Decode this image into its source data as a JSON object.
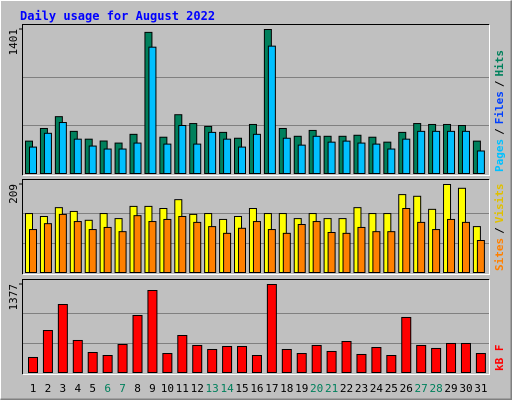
{
  "chart_data": {
    "type": "bar",
    "title": "Daily usage for August 2022",
    "categories": [
      "1",
      "2",
      "3",
      "4",
      "5",
      "6",
      "7",
      "8",
      "9",
      "10",
      "11",
      "12",
      "13",
      "14",
      "15",
      "16",
      "17",
      "18",
      "19",
      "20",
      "21",
      "22",
      "23",
      "24",
      "25",
      "26",
      "27",
      "28",
      "29",
      "30",
      "31"
    ],
    "category_colors": [
      "#000000",
      "#000000",
      "#000000",
      "#000000",
      "#000000",
      "#00805c",
      "#00805c",
      "#000000",
      "#000000",
      "#000000",
      "#000000",
      "#000000",
      "#00805c",
      "#00805c",
      "#000000",
      "#000000",
      "#000000",
      "#000000",
      "#000000",
      "#00805c",
      "#00805c",
      "#000000",
      "#000000",
      "#000000",
      "#000000",
      "#000000",
      "#00805c",
      "#00805c",
      "#000000",
      "#000000",
      "#000000"
    ],
    "legend_separator": "/",
    "panels": [
      {
        "ylim": [
          0,
          1401
        ],
        "yticks": [
          1401
        ],
        "legend": [
          {
            "name": "Pages",
            "color": "#00c0ff"
          },
          {
            "name": "Files",
            "color": "#0040ff"
          },
          {
            "name": "Hits",
            "color": "#00805c"
          }
        ],
        "series": [
          {
            "name": "Hits",
            "color": "#00805c",
            "values": [
              315,
              438,
              553,
              410,
              334,
              316,
              296,
              381,
              1373,
              353,
              572,
              486,
              458,
              400,
              343,
              477,
              1401,
              438,
              362,
              419,
              362,
              362,
              372,
              353,
              305,
              400,
              486,
              477,
              477,
              467,
              315
            ]
          },
          {
            "name": "Pages",
            "color": "#00c0ff",
            "values": [
              257,
              391,
              496,
              334,
              267,
              238,
              238,
              296,
              1229,
              286,
              467,
              286,
              400,
              334,
              257,
              381,
              1239,
              343,
              276,
              362,
              305,
              315,
              296,
              286,
              238,
              334,
              410,
              410,
              410,
              410,
              219
            ]
          }
        ]
      },
      {
        "ylim": [
          0,
          209
        ],
        "yticks": [
          209
        ],
        "legend": [
          {
            "name": "Sites",
            "color": "#ff8000"
          },
          {
            "name": "Visits",
            "color": "#e0c000"
          }
        ],
        "series": [
          {
            "name": "Visits",
            "color": "#ffff00",
            "values": [
              140,
              133,
              154,
              145,
              124,
              140,
              128,
              157,
              157,
              152,
              173,
              138,
              140,
              126,
              133,
              152,
              140,
              140,
              128,
              140,
              128,
              128,
              154,
              140,
              140,
              185,
              181,
              150,
              209,
              200,
              109
            ]
          },
          {
            "name": "Sites",
            "color": "#ff8000",
            "values": [
              102,
              116,
              138,
              121,
              102,
              107,
              97,
              135,
              121,
              126,
              133,
              119,
              109,
              93,
              105,
              121,
              102,
              93,
              114,
              121,
              95,
              93,
              107,
              97,
              97,
              152,
              119,
              102,
              126,
              119,
              76
            ]
          }
        ]
      },
      {
        "ylim": [
          0,
          1377
        ],
        "yticks": [
          1377
        ],
        "legend": [
          {
            "name": "kB F",
            "color": "#ff0000"
          }
        ],
        "series": [
          {
            "name": "kB F",
            "color": "#ff0000",
            "values": [
              235,
              657,
              1064,
              501,
              313,
              266,
              438,
              892,
              1283,
              297,
              579,
              423,
              360,
              407,
              407,
              266,
              1377,
              360,
              297,
              423,
              329,
              485,
              282,
              391,
              266,
              861,
              423,
              376,
              454,
              454,
              297
            ]
          }
        ]
      }
    ]
  }
}
